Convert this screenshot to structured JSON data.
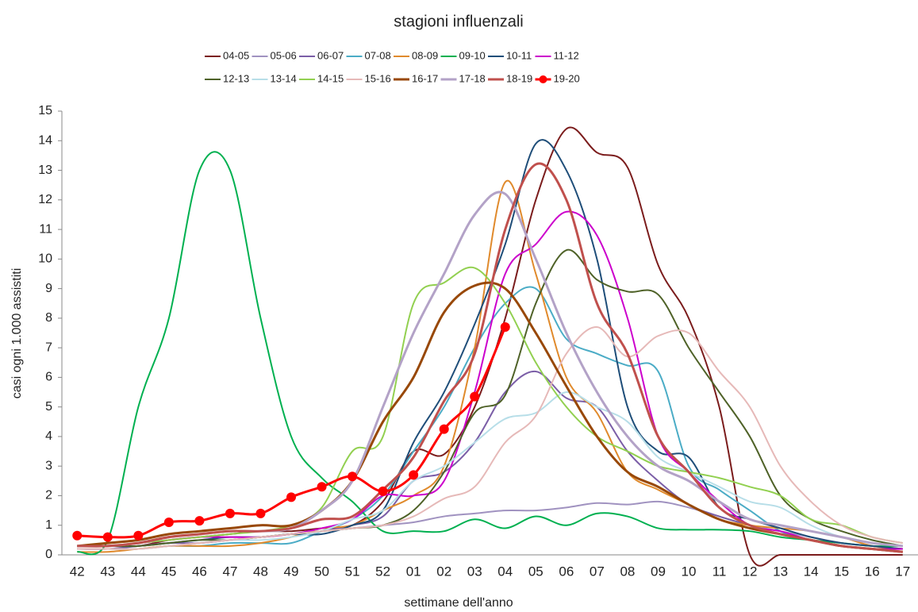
{
  "chart_data": {
    "type": "line",
    "title": "stagioni influenzali",
    "x_label": "settimane dell'anno",
    "y_label": "casi ogni 1.000 assistiti",
    "categories": [
      "42",
      "43",
      "44",
      "45",
      "46",
      "47",
      "48",
      "49",
      "50",
      "51",
      "52",
      "01",
      "02",
      "03",
      "04",
      "05",
      "06",
      "07",
      "08",
      "09",
      "10",
      "11",
      "12",
      "13",
      "14",
      "15",
      "16",
      "17"
    ],
    "ylim": [
      0,
      15
    ],
    "yticks": [
      0,
      1,
      2,
      3,
      4,
      5,
      6,
      7,
      8,
      9,
      10,
      11,
      12,
      13,
      14,
      15
    ],
    "grid": false,
    "legend": "top",
    "smooth": true,
    "series": [
      {
        "name": "04-05",
        "color": "#7b1c1c",
        "width": 2,
        "values": [
          0.3,
          0.3,
          0.3,
          0.5,
          0.6,
          0.7,
          0.8,
          0.8,
          0.9,
          1.0,
          1.8,
          3.5,
          3.4,
          5.0,
          8.0,
          12.0,
          14.4,
          13.6,
          13.1,
          9.8,
          8.0,
          5.0,
          0,
          0,
          0,
          0,
          0,
          0
        ]
      },
      {
        "name": "05-06",
        "color": "#a092c0",
        "width": 2,
        "values": [
          0.2,
          0.2,
          0.2,
          0.3,
          0.4,
          0.5,
          0.6,
          0.7,
          0.8,
          0.9,
          1.0,
          1.1,
          1.3,
          1.4,
          1.5,
          1.5,
          1.6,
          1.75,
          1.7,
          1.8,
          1.6,
          1.3,
          1.0,
          0.8,
          0.6,
          0.4,
          0.3,
          0.2
        ]
      },
      {
        "name": "06-07",
        "color": "#7b5ea7",
        "width": 2,
        "values": [
          0.2,
          0.2,
          0.3,
          0.4,
          0.4,
          0.5,
          0.6,
          0.7,
          0.8,
          1.0,
          1.3,
          2.5,
          2.8,
          3.8,
          5.5,
          6.2,
          5.3,
          5.0,
          3.5,
          2.5,
          1.7,
          1.3,
          1.0,
          0.7,
          0.5,
          0.3,
          0.2,
          0.2
        ]
      },
      {
        "name": "07-08",
        "color": "#4bacc6",
        "width": 2,
        "values": [
          0.2,
          0.2,
          0.2,
          0.3,
          0.3,
          0.4,
          0.4,
          0.4,
          0.8,
          1.2,
          2.0,
          3.5,
          5.0,
          7.0,
          8.5,
          9.0,
          7.3,
          6.8,
          6.4,
          6.2,
          3.0,
          2.2,
          1.5,
          0.8,
          0.5,
          0.3,
          0.2,
          0.2
        ]
      },
      {
        "name": "08-09",
        "color": "#e08a2c",
        "width": 2,
        "values": [
          0.1,
          0.1,
          0.2,
          0.3,
          0.3,
          0.3,
          0.4,
          0.6,
          0.9,
          1.0,
          1.5,
          2.0,
          3.0,
          7.0,
          12.6,
          9.5,
          6.0,
          4.8,
          2.8,
          2.2,
          1.7,
          1.2,
          1.0,
          0.9,
          0.8,
          0.6,
          0.3,
          0.2
        ]
      },
      {
        "name": "09-10",
        "color": "#00b050",
        "width": 2,
        "values": [
          0.1,
          0.5,
          5.0,
          8.0,
          13.0,
          13.0,
          8.0,
          4.0,
          2.6,
          1.8,
          0.8,
          0.8,
          0.8,
          1.2,
          0.9,
          1.3,
          1.0,
          1.4,
          1.3,
          0.9,
          0.85,
          0.85,
          0.8,
          0.6,
          0.5,
          0.4,
          0.3,
          0.3
        ]
      },
      {
        "name": "10-11",
        "color": "#1f4e79",
        "width": 2,
        "values": [
          0.3,
          0.3,
          0.3,
          0.4,
          0.5,
          0.6,
          0.6,
          0.7,
          0.7,
          1.0,
          1.5,
          3.8,
          5.5,
          7.8,
          10.5,
          13.9,
          13.0,
          10.0,
          5.0,
          3.5,
          3.3,
          1.6,
          1.2,
          0.9,
          0.6,
          0.4,
          0.3,
          0.2
        ]
      },
      {
        "name": "11-12",
        "color": "#cc00cc",
        "width": 2,
        "values": [
          0.3,
          0.3,
          0.4,
          0.5,
          0.6,
          0.6,
          0.6,
          0.7,
          0.9,
          1.2,
          2.0,
          2.0,
          2.5,
          5.5,
          9.5,
          10.5,
          11.6,
          10.8,
          8.0,
          4.0,
          2.8,
          1.8,
          1.0,
          0.8,
          0.5,
          0.3,
          0.2,
          0.2
        ]
      },
      {
        "name": "12-13",
        "color": "#4f6228",
        "width": 2,
        "values": [
          0.3,
          0.3,
          0.3,
          0.4,
          0.5,
          0.5,
          0.6,
          0.7,
          0.8,
          0.9,
          1.0,
          1.5,
          2.8,
          4.8,
          5.4,
          8.5,
          10.3,
          9.3,
          8.9,
          8.8,
          7.0,
          5.5,
          4.0,
          2.0,
          1.2,
          0.8,
          0.5,
          0.3
        ]
      },
      {
        "name": "13-14",
        "color": "#b7dee8",
        "width": 2,
        "values": [
          0.2,
          0.2,
          0.2,
          0.3,
          0.4,
          0.5,
          0.5,
          0.6,
          0.8,
          1.2,
          1.5,
          2.5,
          3.0,
          3.8,
          4.6,
          4.8,
          5.5,
          5.0,
          4.5,
          3.3,
          2.8,
          2.3,
          1.8,
          1.6,
          1.0,
          0.6,
          0.4,
          0.3
        ]
      },
      {
        "name": "14-15",
        "color": "#92d050",
        "width": 2,
        "values": [
          0.3,
          0.3,
          0.4,
          0.5,
          0.6,
          0.7,
          0.8,
          1.0,
          1.6,
          3.5,
          4.0,
          8.5,
          9.2,
          9.7,
          8.5,
          6.5,
          5.0,
          4.0,
          3.5,
          3.0,
          2.8,
          2.6,
          2.3,
          2.0,
          1.2,
          1.0,
          0.6,
          0.4
        ]
      },
      {
        "name": "15-16",
        "color": "#e6b9b8",
        "width": 2,
        "values": [
          0.2,
          0.2,
          0.2,
          0.3,
          0.4,
          0.5,
          0.6,
          0.7,
          0.8,
          0.9,
          1.0,
          1.3,
          1.9,
          2.3,
          3.8,
          4.7,
          6.8,
          7.7,
          6.7,
          7.4,
          7.5,
          6.2,
          5.0,
          3.0,
          1.8,
          1.0,
          0.6,
          0.4
        ]
      },
      {
        "name": "16-17",
        "color": "#984807",
        "width": 3,
        "values": [
          0.3,
          0.4,
          0.5,
          0.7,
          0.8,
          0.9,
          1.0,
          1.0,
          1.5,
          2.5,
          4.5,
          6.0,
          8.2,
          9.1,
          9.0,
          7.5,
          5.7,
          4.0,
          2.8,
          2.3,
          1.7,
          1.2,
          0.9,
          0.7,
          0.5,
          0.3,
          0.2,
          0.1
        ]
      },
      {
        "name": "17-18",
        "color": "#b3a2c7",
        "width": 3,
        "values": [
          0.3,
          0.3,
          0.4,
          0.6,
          0.7,
          0.8,
          0.8,
          0.9,
          1.5,
          2.5,
          5.0,
          7.5,
          9.5,
          11.5,
          12.2,
          10.0,
          7.5,
          5.5,
          4.0,
          3.0,
          2.5,
          1.8,
          1.2,
          1.0,
          0.8,
          0.6,
          0.4,
          0.3
        ]
      },
      {
        "name": "18-19",
        "color": "#c0504d",
        "width": 3,
        "values": [
          0.3,
          0.3,
          0.4,
          0.6,
          0.7,
          0.8,
          0.8,
          0.9,
          1.2,
          1.3,
          2.2,
          3.3,
          5.2,
          6.8,
          11.0,
          13.2,
          12.0,
          8.5,
          6.8,
          4.0,
          2.8,
          1.6,
          1.0,
          0.7,
          0.5,
          0.3,
          0.2,
          0.1
        ]
      },
      {
        "name": "19-20",
        "color": "#ff0000",
        "width": 3,
        "marker": "circle",
        "values": [
          0.65,
          0.6,
          0.65,
          1.1,
          1.15,
          1.4,
          1.4,
          1.95,
          2.3,
          2.65,
          2.15,
          2.7,
          4.25,
          5.35,
          7.7,
          null,
          null,
          null,
          null,
          null,
          null,
          null,
          null,
          null,
          null,
          null,
          null,
          null
        ]
      }
    ]
  }
}
